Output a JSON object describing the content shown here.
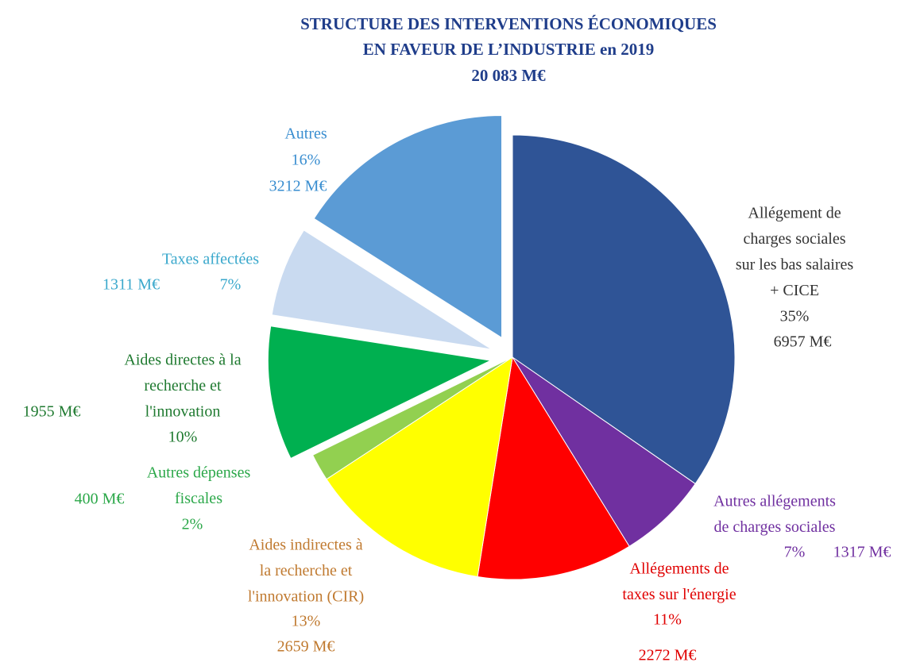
{
  "chart_data": {
    "type": "pie",
    "title": [
      "STRUCTURE DES INTERVENTIONS ÉCONOMIQUES",
      "EN FAVEUR DE L’INDUSTRIE en 2019",
      "20 083 M€"
    ],
    "categories": [
      [
        "Allégement de",
        "charges sociales",
        "sur les bas salaires",
        "+ CICE"
      ],
      [
        "Autres allégements",
        "de charges sociales"
      ],
      [
        "Allégements de",
        "taxes sur l'énergie"
      ],
      [
        "Aides indirectes à",
        "la recherche et",
        "l'innovation (CIR)"
      ],
      [
        "Autres dépenses",
        "fiscales"
      ],
      [
        "Aides directes à la",
        "recherche et",
        "l'innovation"
      ],
      [
        "Taxes affectées"
      ],
      [
        "Autres"
      ]
    ],
    "values": [
      6957,
      1317,
      2272,
      2659,
      400,
      1955,
      1311,
      3212
    ],
    "value_labels": [
      "6957 M€",
      "1317 M€",
      "2272 M€",
      "2659 M€",
      "400 M€",
      "1955 M€",
      "1311 M€",
      "3212 M€"
    ],
    "percent_labels": [
      "35%",
      "7%",
      "11%",
      "13%",
      "2%",
      "10%",
      "7%",
      "16%"
    ],
    "colors": [
      "#2f5496",
      "#7030a0",
      "#ff0000",
      "#ffff00",
      "#92d050",
      "#00b050",
      "#c9daf0",
      "#5b9bd5"
    ],
    "label_colors": [
      "#333333",
      "#7030a0",
      "#e00000",
      "#c07a30",
      "#2ca84a",
      "#1f7a30",
      "#3aa8cc",
      "#3a8ed0"
    ],
    "exploded": [
      false,
      false,
      false,
      false,
      false,
      true,
      true,
      true
    ]
  }
}
